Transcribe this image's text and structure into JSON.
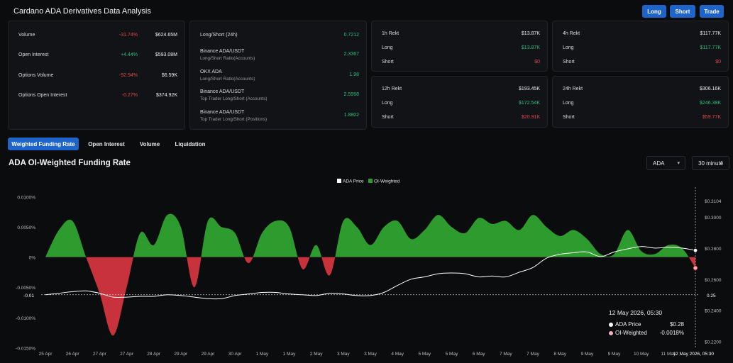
{
  "header": {
    "title": "Cardano ADA Derivatives Data Analysis",
    "buttons": [
      "Long",
      "Short",
      "Trade"
    ]
  },
  "stats_card": [
    {
      "label": "Volume",
      "pct": "-31.74%",
      "pct_dir": "neg",
      "value": "$624.65M"
    },
    {
      "label": "Open Interest",
      "pct": "+4.44%",
      "pct_dir": "pos",
      "value": "$593.08M"
    },
    {
      "label": "Options Volume",
      "pct": "-92.94%",
      "pct_dir": "neg",
      "value": "$6.59K"
    },
    {
      "label": "Options Open Interest",
      "pct": "-0.27%",
      "pct_dir": "neg",
      "value": "$374.92K"
    }
  ],
  "ratio_card": [
    {
      "label": "Long/Short (24h)",
      "sub": "",
      "value": "0.7212"
    },
    {
      "label": "Binance ADA/USDT",
      "sub": "Long/Short Ratio(Accounts)",
      "value": "2.3367"
    },
    {
      "label": "OKX ADA",
      "sub": "Long/Short Ratio(Accounts)",
      "value": "1.98"
    },
    {
      "label": "Binance ADA/USDT",
      "sub": "Top Trader Long/Short (Accounts)",
      "value": "2.5958"
    },
    {
      "label": "Binance ADA/USDT",
      "sub": "Top Trader Long/Short (Positions)",
      "value": "1.8802"
    }
  ],
  "rekt_cards": [
    {
      "rows": [
        {
          "label": "1h Rekt",
          "value": "$13.87K",
          "tone": ""
        },
        {
          "label": "Long",
          "value": "$13.87K",
          "tone": "pos"
        },
        {
          "label": "Short",
          "value": "$0",
          "tone": "neg"
        }
      ]
    },
    {
      "rows": [
        {
          "label": "4h Rekt",
          "value": "$117.77K",
          "tone": ""
        },
        {
          "label": "Long",
          "value": "$117.77K",
          "tone": "pos"
        },
        {
          "label": "Short",
          "value": "$0",
          "tone": "neg"
        }
      ]
    },
    {
      "rows": [
        {
          "label": "12h Rekt",
          "value": "$193.45K",
          "tone": ""
        },
        {
          "label": "Long",
          "value": "$172.54K",
          "tone": "pos"
        },
        {
          "label": "Short",
          "value": "$20.91K",
          "tone": "neg"
        }
      ]
    },
    {
      "rows": [
        {
          "label": "24h Rekt",
          "value": "$306.16K",
          "tone": ""
        },
        {
          "label": "Long",
          "value": "$246.38K",
          "tone": "pos"
        },
        {
          "label": "Short",
          "value": "$59.77K",
          "tone": "neg"
        }
      ]
    }
  ],
  "tabs": [
    "Weighted Funding Rate",
    "Open Interest",
    "Volume",
    "Liquidation"
  ],
  "active_tab": "Weighted Funding Rate",
  "chart_header": {
    "title": "ADA OI-Weighted Funding Rate",
    "coin_select": "ADA",
    "interval_select": "30 minute"
  },
  "tooltip": {
    "time": "12 May 2026, 05:30",
    "price_label": "ADA Price",
    "price_value": "$0.28",
    "rate_label": "OI-Weighted",
    "rate_value": "-0.0018%"
  },
  "colors": {
    "positive": "#2e9b2e",
    "negative": "#c8323c",
    "price_line": "#ffffff",
    "accent": "#1f64c8"
  },
  "chart_data": {
    "type": "area",
    "legend": [
      "ADA Price",
      "OI-Weighted"
    ],
    "legend_position": "top-center",
    "x_labels": [
      "25 Apr",
      "26 Apr",
      "27 Apr",
      "27 Apr",
      "28 Apr",
      "29 Apr",
      "29 Apr",
      "30 Apr",
      "1 May",
      "1 May",
      "2 May",
      "3 May",
      "3 May",
      "4 May",
      "5 May",
      "5 May",
      "6 May",
      "7 May",
      "7 May",
      "8 May",
      "9 May",
      "9 May",
      "10 May",
      "11 May",
      "12 May 2026, 05:30"
    ],
    "left_axis": {
      "ticks": [
        "0.0100%",
        "0.0050%",
        "0%",
        "-0.0050%",
        "-0.0100%",
        "-0.0150%"
      ],
      "values": [
        0.01,
        0.005,
        0,
        -0.005,
        -0.01,
        -0.015
      ],
      "range": [
        -0.0152,
        0.0116
      ]
    },
    "right_axis": {
      "ticks": [
        "$0.3104",
        "$0.3000",
        "$0.2800",
        "$0.2600",
        "$0.2400",
        "$0.2200"
      ],
      "values": [
        0.3104,
        0.3,
        0.28,
        0.26,
        0.24,
        0.22
      ],
      "range": [
        0.2153,
        0.3191
      ]
    },
    "crosshair_labels": {
      "left": "-0.01",
      "right": "0.25"
    },
    "series": [
      {
        "name": "OI-Weighted",
        "x": [
          0,
          0.5,
          1,
          1.5,
          2,
          2.5,
          3,
          3.5,
          4,
          4.5,
          5,
          5.5,
          6,
          6.5,
          7,
          7.5,
          8,
          8.5,
          9,
          9.5,
          10,
          10.5,
          11,
          11.5,
          12,
          12.5,
          13,
          13.5,
          14,
          14.5,
          15,
          15.5,
          16,
          16.5,
          17,
          17.5,
          18,
          18.5,
          19,
          19.5,
          20,
          20.5,
          21,
          21.5,
          22,
          22.5,
          23,
          23.5,
          24
        ],
        "values": [
          0,
          0.0045,
          0.006,
          0,
          -0.006,
          -0.013,
          -0.005,
          0.004,
          0.002,
          0.007,
          0.005,
          -0.005,
          0.006,
          0.005,
          0.004,
          -0.001,
          0.004,
          0.006,
          0.005,
          -0.002,
          0.002,
          -0.003,
          0.006,
          0.005,
          0.002,
          0.005,
          0.006,
          0.003,
          0.0045,
          0.007,
          0.005,
          0.004,
          0.0065,
          0.0055,
          0.006,
          0.0045,
          0.007,
          0.005,
          0.0035,
          0.0045,
          0.003,
          0.0005,
          0.0005,
          0.0045,
          0.001,
          0.0005,
          0.002,
          0.0015,
          -0.0018
        ]
      },
      {
        "name": "ADA Price",
        "x": [
          0,
          0.5,
          1,
          1.5,
          2,
          2.5,
          3,
          3.5,
          4,
          4.5,
          5,
          5.5,
          6,
          6.5,
          7,
          7.5,
          8,
          8.5,
          9,
          9.5,
          10,
          10.5,
          11,
          11.5,
          12,
          12.5,
          13,
          13.5,
          14,
          14.5,
          15,
          15.5,
          16,
          16.5,
          17,
          17.5,
          18,
          18.5,
          19,
          19.5,
          20,
          20.5,
          21,
          21.5,
          22,
          22.5,
          23,
          23.5,
          24
        ],
        "values": [
          0.25,
          0.251,
          0.252,
          0.2525,
          0.251,
          0.2485,
          0.2485,
          0.249,
          0.249,
          0.25,
          0.2495,
          0.2485,
          0.2475,
          0.2475,
          0.2495,
          0.2505,
          0.2515,
          0.2515,
          0.2505,
          0.25,
          0.2495,
          0.251,
          0.2505,
          0.2495,
          0.2495,
          0.2515,
          0.256,
          0.26,
          0.2615,
          0.2635,
          0.264,
          0.2635,
          0.2615,
          0.262,
          0.2615,
          0.2645,
          0.2675,
          0.2735,
          0.276,
          0.277,
          0.2775,
          0.2745,
          0.2775,
          0.2795,
          0.281,
          0.28,
          0.2805,
          0.28,
          0.2785
        ]
      }
    ]
  }
}
